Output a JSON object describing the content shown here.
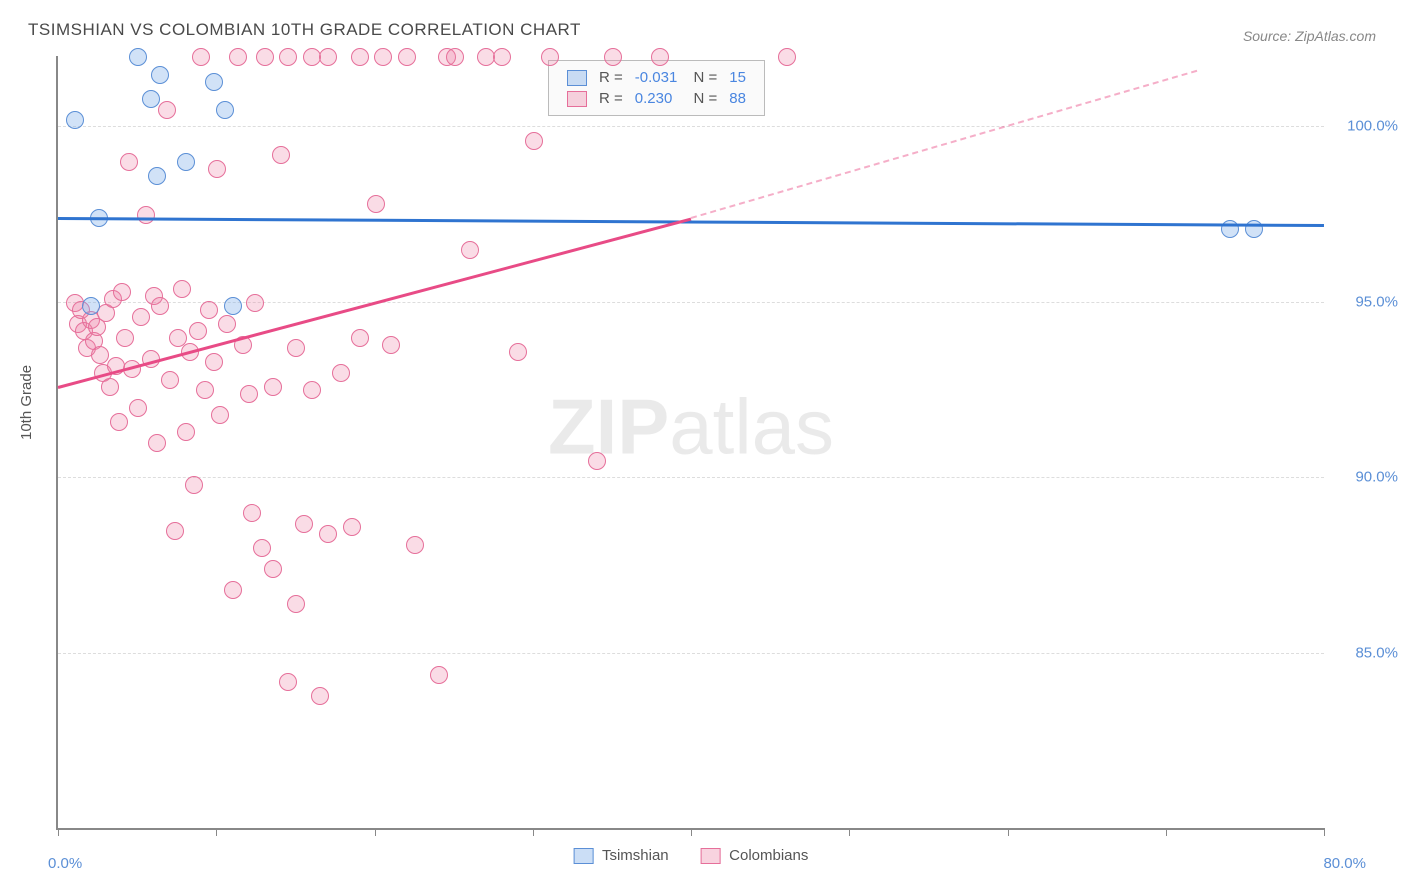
{
  "title": "TSIMSHIAN VS COLOMBIAN 10TH GRADE CORRELATION CHART",
  "source": "Source: ZipAtlas.com",
  "ylabel": "10th Grade",
  "watermark_bold": "ZIP",
  "watermark_light": "atlas",
  "chart": {
    "type": "scatter",
    "xlim": [
      0,
      80
    ],
    "ylim": [
      80,
      102
    ],
    "yticks": [
      85.0,
      90.0,
      95.0,
      100.0
    ],
    "ytick_labels": [
      "85.0%",
      "90.0%",
      "95.0%",
      "100.0%"
    ],
    "xticks": [
      0,
      10,
      20,
      30,
      40,
      50,
      60,
      70,
      80
    ],
    "xtick_labels": {
      "0": "0.0%",
      "80": "80.0%"
    },
    "series_blue": {
      "name": "Tsimshian",
      "color_fill": "rgba(124,172,232,0.35)",
      "color_stroke": "#5b8fd6",
      "R": "-0.031",
      "N": "15",
      "trend": {
        "x1": 0,
        "y1": 97.4,
        "x2": 80,
        "y2": 97.2,
        "color": "#2f74d0"
      },
      "points": [
        [
          1.0,
          100.2
        ],
        [
          2.0,
          94.9
        ],
        [
          2.5,
          97.4
        ],
        [
          5.0,
          102.0
        ],
        [
          5.8,
          100.8
        ],
        [
          6.2,
          98.6
        ],
        [
          6.4,
          101.5
        ],
        [
          8.0,
          99.0
        ],
        [
          9.8,
          101.3
        ],
        [
          10.5,
          100.5
        ],
        [
          11.0,
          94.9
        ],
        [
          74.0,
          97.1
        ],
        [
          75.5,
          97.1
        ]
      ]
    },
    "series_pink": {
      "name": "Colombians",
      "color_fill": "rgba(236,130,164,0.28)",
      "color_stroke": "#e66f9a",
      "R": "0.230",
      "N": "88",
      "trend_solid": {
        "x1": 0,
        "y1": 92.6,
        "x2": 40,
        "y2": 97.4,
        "color": "#e84b86"
      },
      "trend_dash": {
        "x1": 40,
        "y1": 97.4,
        "x2": 72,
        "y2": 101.6
      },
      "points": [
        [
          1.0,
          95.0
        ],
        [
          1.2,
          94.4
        ],
        [
          1.4,
          94.8
        ],
        [
          1.6,
          94.2
        ],
        [
          1.8,
          93.7
        ],
        [
          2.0,
          94.5
        ],
        [
          2.2,
          93.9
        ],
        [
          2.4,
          94.3
        ],
        [
          2.6,
          93.5
        ],
        [
          2.8,
          93.0
        ],
        [
          3.0,
          94.7
        ],
        [
          3.2,
          92.6
        ],
        [
          3.4,
          95.1
        ],
        [
          3.6,
          93.2
        ],
        [
          3.8,
          91.6
        ],
        [
          4.0,
          95.3
        ],
        [
          4.2,
          94.0
        ],
        [
          4.4,
          99.0
        ],
        [
          4.6,
          93.1
        ],
        [
          5.0,
          92.0
        ],
        [
          5.2,
          94.6
        ],
        [
          5.5,
          97.5
        ],
        [
          5.8,
          93.4
        ],
        [
          6.0,
          95.2
        ],
        [
          6.2,
          91.0
        ],
        [
          6.4,
          94.9
        ],
        [
          6.8,
          100.5
        ],
        [
          7.0,
          92.8
        ],
        [
          7.3,
          88.5
        ],
        [
          7.5,
          94.0
        ],
        [
          7.8,
          95.4
        ],
        [
          8.0,
          91.3
        ],
        [
          8.3,
          93.6
        ],
        [
          8.5,
          89.8
        ],
        [
          8.8,
          94.2
        ],
        [
          9.0,
          102.0
        ],
        [
          9.2,
          92.5
        ],
        [
          9.5,
          94.8
        ],
        [
          9.8,
          93.3
        ],
        [
          10.0,
          98.8
        ],
        [
          10.2,
          91.8
        ],
        [
          10.6,
          94.4
        ],
        [
          11.0,
          86.8
        ],
        [
          11.3,
          102.0
        ],
        [
          11.6,
          93.8
        ],
        [
          12.0,
          92.4
        ],
        [
          12.2,
          89.0
        ],
        [
          12.4,
          95.0
        ],
        [
          12.8,
          88.0
        ],
        [
          13.0,
          102.0
        ],
        [
          13.5,
          87.4
        ],
        [
          13.5,
          92.6
        ],
        [
          14.0,
          99.2
        ],
        [
          14.5,
          84.2
        ],
        [
          14.5,
          102.0
        ],
        [
          15.0,
          86.4
        ],
        [
          15.0,
          93.7
        ],
        [
          15.5,
          88.7
        ],
        [
          16.0,
          102.0
        ],
        [
          16.0,
          92.5
        ],
        [
          16.5,
          83.8
        ],
        [
          17.0,
          88.4
        ],
        [
          17.0,
          102.0
        ],
        [
          17.8,
          93.0
        ],
        [
          18.5,
          88.6
        ],
        [
          19.0,
          94.0
        ],
        [
          19.0,
          102.0
        ],
        [
          20.0,
          97.8
        ],
        [
          20.5,
          102.0
        ],
        [
          21.0,
          93.8
        ],
        [
          22.0,
          102.0
        ],
        [
          22.5,
          88.1
        ],
        [
          24.0,
          84.4
        ],
        [
          24.5,
          102.0
        ],
        [
          25.0,
          102.0
        ],
        [
          26.0,
          96.5
        ],
        [
          27.0,
          102.0
        ],
        [
          28.0,
          102.0
        ],
        [
          29.0,
          93.6
        ],
        [
          30.0,
          99.6
        ],
        [
          31.0,
          102.0
        ],
        [
          34.0,
          90.5
        ],
        [
          35.0,
          102.0
        ],
        [
          38.0,
          102.0
        ],
        [
          46.0,
          102.0
        ]
      ]
    }
  },
  "legend_bottom": {
    "s1": "Tsimshian",
    "s2": "Colombians"
  }
}
